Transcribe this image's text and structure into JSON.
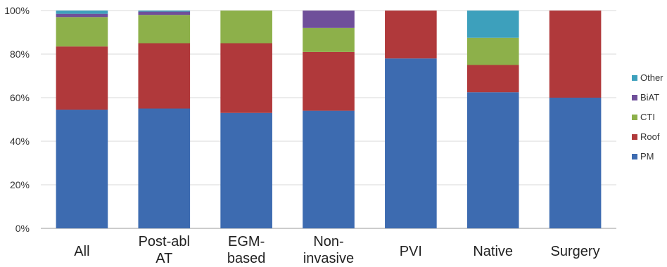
{
  "chart_data": {
    "type": "bar",
    "stacked": true,
    "percent": true,
    "categories": [
      [
        "All"
      ],
      [
        "Post-abl",
        "AT"
      ],
      [
        "EGM-",
        "based"
      ],
      [
        "Non-",
        "invasive"
      ],
      [
        "PVI"
      ],
      [
        "Native"
      ],
      [
        "Surgery"
      ]
    ],
    "series": [
      {
        "name": "PM",
        "color": "#3D6BB0",
        "values": [
          54.5,
          55,
          53,
          54,
          78,
          62.5,
          60
        ]
      },
      {
        "name": "Roof",
        "color": "#B0393B",
        "values": [
          29,
          30,
          32,
          27,
          22,
          12.5,
          40
        ]
      },
      {
        "name": "CTI",
        "color": "#8DB04A",
        "values": [
          13.5,
          13,
          15,
          11,
          0,
          12.5,
          0
        ]
      },
      {
        "name": "BiAT",
        "color": "#6F4F9A",
        "values": [
          1.5,
          1.5,
          0,
          8,
          0,
          0,
          0
        ]
      },
      {
        "name": "Other",
        "color": "#3DA0BC",
        "values": [
          1.5,
          0.5,
          0,
          0,
          0,
          12.5,
          0
        ]
      }
    ],
    "yticks": [
      "0%",
      "20%",
      "40%",
      "60%",
      "80%",
      "100%"
    ],
    "ylim": [
      0,
      100
    ],
    "grid": true,
    "legend_position": "right",
    "legend_order": [
      "Other",
      "BiAT",
      "CTI",
      "Roof",
      "PM"
    ],
    "title": "",
    "xlabel": "",
    "ylabel": ""
  }
}
